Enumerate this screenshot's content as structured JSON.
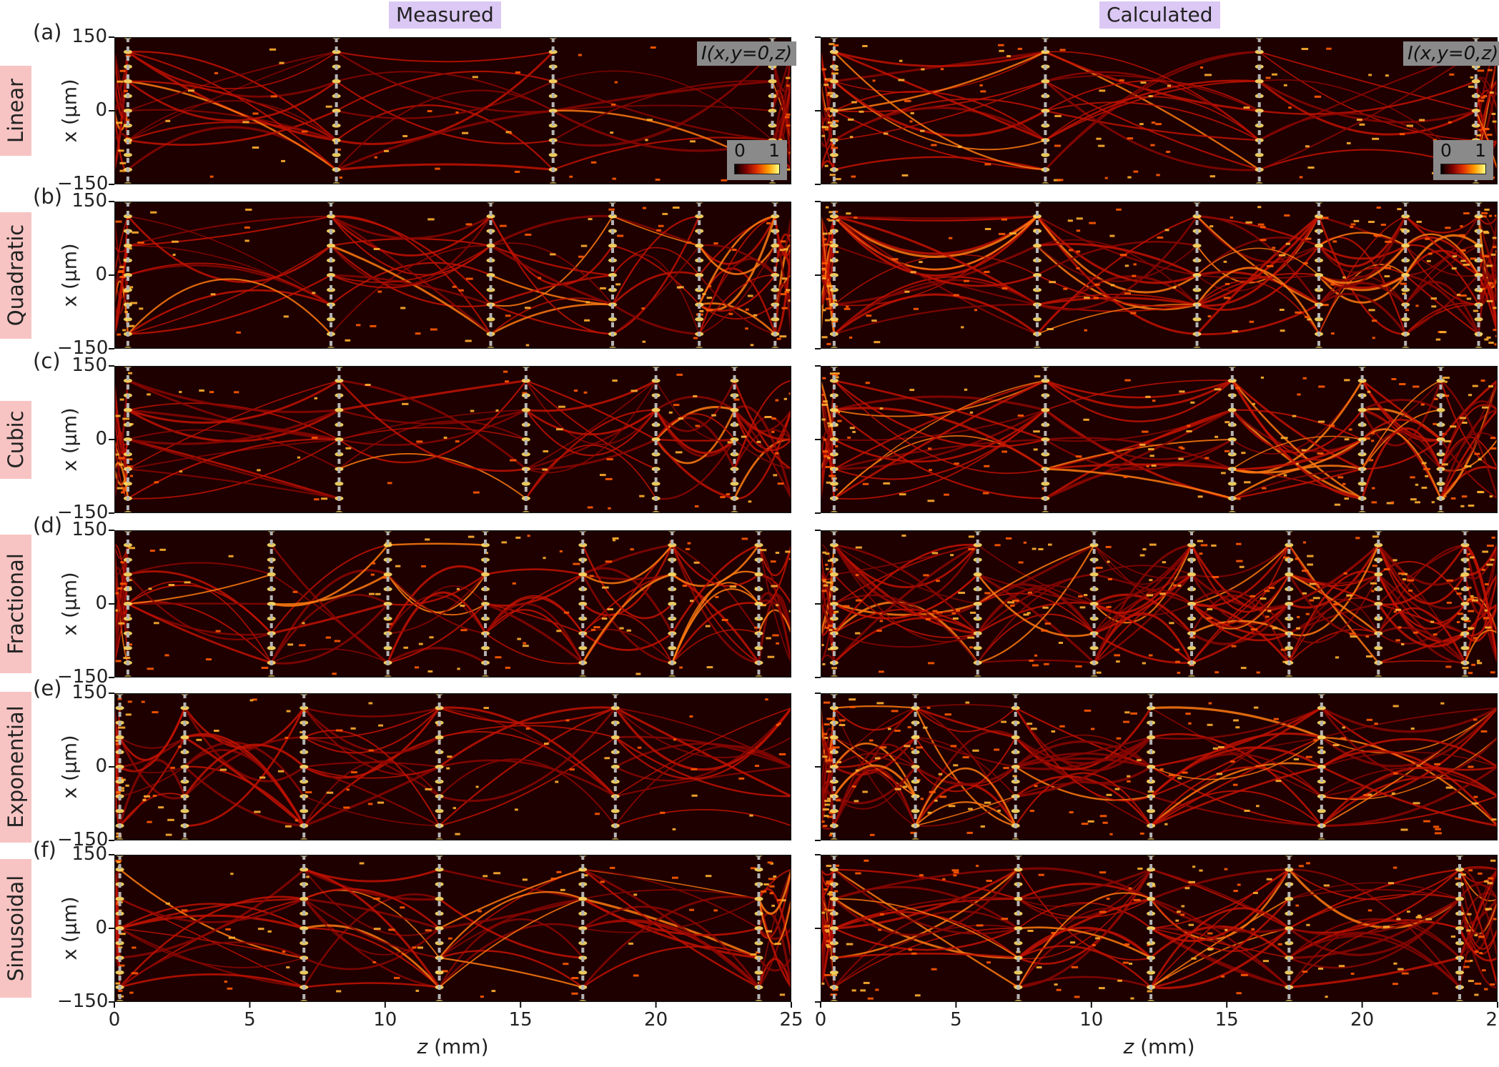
{
  "columns": {
    "measured": "Measured",
    "calculated": "Calculated"
  },
  "overlay": {
    "intensity": "I(x,y=0,z)",
    "cbar_min": "0",
    "cbar_max": "1"
  },
  "axis_labels": {
    "y_label": "x (μm)",
    "x_var": "z",
    "x_unit": " (mm)"
  },
  "colors": {
    "column_title_bg": "#dcc8f4",
    "row_label_bg": "#f7c4c3",
    "focus_line": "#b4b4b4",
    "colormap": [
      "#000000",
      "#7a0000",
      "#e03000",
      "#ff9a00",
      "#ffff80"
    ]
  },
  "chart_data": {
    "type": "heatmap",
    "colormap": "hot",
    "intensity_range": [
      0,
      1
    ],
    "x_axis": {
      "label": "z (mm)",
      "range": [
        0,
        25
      ],
      "ticks": [
        "0",
        "5",
        "10",
        "15",
        "20",
        "25"
      ]
    },
    "y_axis": {
      "label": "x (μm)",
      "range": [
        -150,
        150
      ],
      "ticks": [
        "150",
        "0",
        "-150"
      ]
    },
    "rows": [
      {
        "letter": "(a)",
        "name": "Linear",
        "measured_focus_z": [
          0.5,
          8.2,
          16.2,
          24.3
        ],
        "calculated_focus_z": [
          0.5,
          8.3,
          16.2,
          24.2
        ]
      },
      {
        "letter": "(b)",
        "name": "Quadratic",
        "measured_focus_z": [
          0.5,
          8.0,
          13.9,
          18.4,
          21.6,
          24.4
        ],
        "calculated_focus_z": [
          0.5,
          8.0,
          13.9,
          18.4,
          21.6,
          24.3
        ]
      },
      {
        "letter": "(c)",
        "name": "Cubic",
        "measured_focus_z": [
          0.5,
          8.3,
          15.2,
          20.0,
          22.9
        ],
        "calculated_focus_z": [
          0.5,
          8.3,
          15.2,
          20.0,
          22.9
        ]
      },
      {
        "letter": "(d)",
        "name": "Fractional",
        "measured_focus_z": [
          0.5,
          5.8,
          10.1,
          13.7,
          17.3,
          20.6,
          23.8
        ],
        "calculated_focus_z": [
          0.5,
          5.8,
          10.1,
          13.7,
          17.3,
          20.6,
          23.8
        ]
      },
      {
        "letter": "(e)",
        "name": "Exponential",
        "measured_focus_z": [
          0.2,
          2.6,
          7.0,
          12.0,
          18.5
        ],
        "calculated_focus_z": [
          0.5,
          3.5,
          7.2,
          12.2,
          18.5
        ]
      },
      {
        "letter": "(f)",
        "name": "Sinusoidal",
        "measured_focus_z": [
          0.2,
          7.0,
          12.0,
          17.3,
          23.8
        ],
        "calculated_focus_z": [
          0.5,
          7.3,
          12.2,
          17.3,
          23.6
        ]
      }
    ]
  }
}
